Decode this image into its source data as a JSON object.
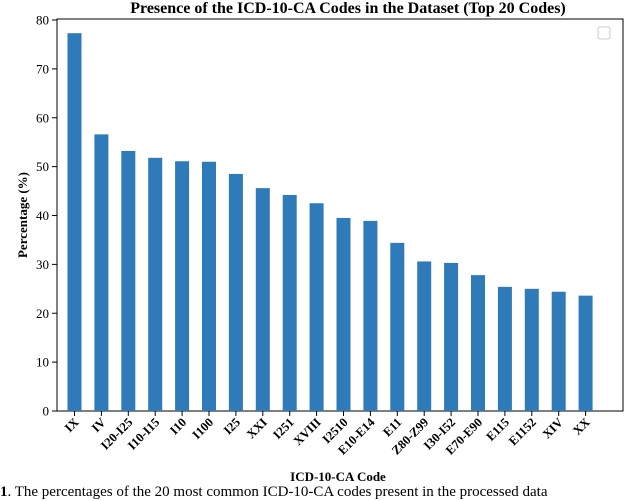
{
  "chart_data": {
    "type": "bar",
    "title": "Presence of the ICD-10-CA Codes in the Dataset (Top 20 Codes)",
    "xlabel": "ICD-10-CA Code",
    "ylabel": "Percentage (%)",
    "ylim": [
      0,
      80
    ],
    "yticks": [
      0,
      10,
      20,
      30,
      40,
      50,
      60,
      70,
      80
    ],
    "legend": "top-right (empty)",
    "grid": false,
    "color": "#2f7ab8",
    "categories": [
      "IX",
      "IV",
      "I20-I25",
      "I10-I15",
      "I10",
      "I100",
      "I25",
      "XXI",
      "I251",
      "XVIII",
      "I2510",
      "E10-E14",
      "E11",
      "Z80-Z99",
      "I30-I52",
      "E70-E90",
      "E115",
      "E1152",
      "XIV",
      "XX"
    ],
    "values": [
      77.3,
      56.6,
      53.2,
      51.8,
      51.1,
      51.0,
      48.5,
      45.6,
      44.2,
      42.5,
      39.5,
      38.9,
      34.4,
      30.6,
      30.3,
      27.8,
      25.4,
      25.0,
      24.4,
      23.6
    ]
  },
  "caption": {
    "number": "1",
    "text": ". The percentages of the 20 most common ICD-10-CA codes present in the processed data"
  }
}
